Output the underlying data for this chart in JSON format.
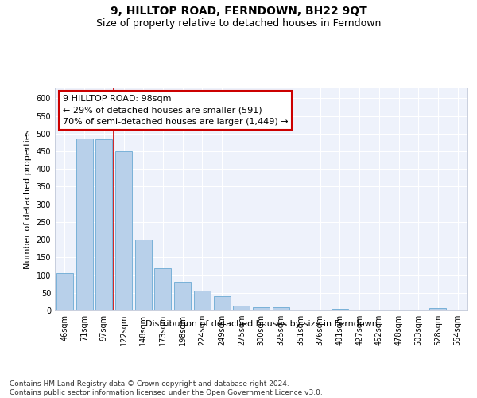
{
  "title": "9, HILLTOP ROAD, FERNDOWN, BH22 9QT",
  "subtitle": "Size of property relative to detached houses in Ferndown",
  "xlabel": "Distribution of detached houses by size in Ferndown",
  "ylabel": "Number of detached properties",
  "categories": [
    "46sqm",
    "71sqm",
    "97sqm",
    "122sqm",
    "148sqm",
    "173sqm",
    "198sqm",
    "224sqm",
    "249sqm",
    "275sqm",
    "300sqm",
    "325sqm",
    "351sqm",
    "376sqm",
    "401sqm",
    "427sqm",
    "452sqm",
    "478sqm",
    "503sqm",
    "528sqm",
    "554sqm"
  ],
  "values": [
    105,
    487,
    483,
    451,
    200,
    120,
    82,
    56,
    40,
    14,
    9,
    10,
    0,
    0,
    5,
    0,
    0,
    0,
    0,
    6,
    0
  ],
  "bar_color": "#b8d0ea",
  "bar_edge_color": "#6aaad4",
  "vline_index": 2,
  "vline_color": "#cc0000",
  "annotation_text": "9 HILLTOP ROAD: 98sqm\n← 29% of detached houses are smaller (591)\n70% of semi-detached houses are larger (1,449) →",
  "annotation_box_color": "#ffffff",
  "annotation_box_edge_color": "#cc0000",
  "ylim": [
    0,
    630
  ],
  "yticks": [
    0,
    50,
    100,
    150,
    200,
    250,
    300,
    350,
    400,
    450,
    500,
    550,
    600
  ],
  "footer_text": "Contains HM Land Registry data © Crown copyright and database right 2024.\nContains public sector information licensed under the Open Government Licence v3.0.",
  "background_color": "#eef2fb",
  "grid_color": "#ffffff",
  "title_fontsize": 10,
  "subtitle_fontsize": 9,
  "axis_label_fontsize": 8,
  "tick_fontsize": 7,
  "annotation_fontsize": 8,
  "footer_fontsize": 6.5
}
